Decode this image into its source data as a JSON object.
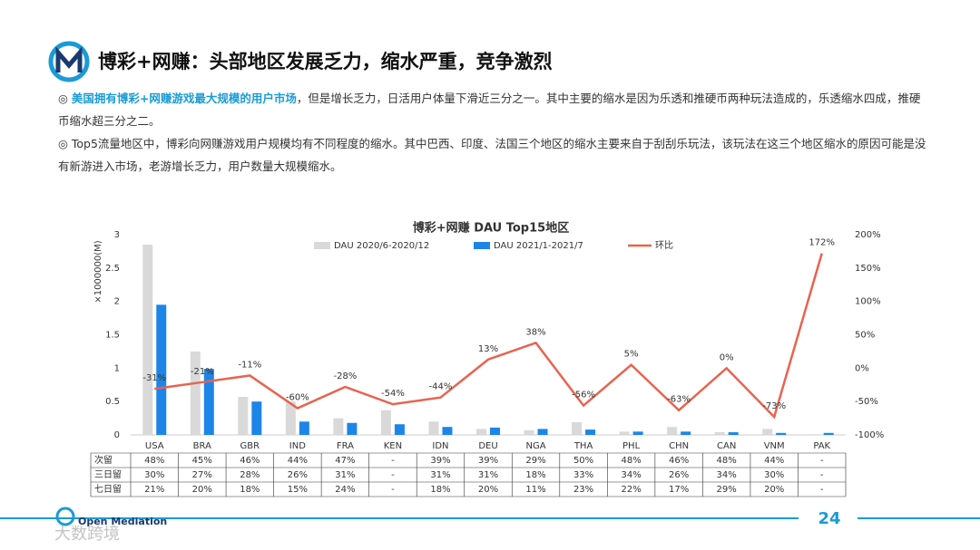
{
  "header": {
    "title": "博彩+网赚：头部地区发展乏力，缩水严重，竞争激烈"
  },
  "bullets": [
    {
      "highlight": "美国拥有博彩+网赚游戏最大规模的用户市场",
      "text": "，但是增长乏力，日活用户体量下滑近三分之一。其中主要的缩水是因为乐透和推硬币两种玩法造成的，乐透缩水四成，推硬币缩水超三分之二。"
    },
    {
      "text": "Top5流量地区中，博彩向网赚游戏用户规模均有不同程度的缩水。其中巴西、印度、法国三个地区的缩水主要来自于刮刮乐玩法，该玩法在这三个地区缩水的原因可能是没有新游进入市场，老游增长乏力，用户数量大规模缩水。"
    }
  ],
  "chart_data": {
    "type": "bar",
    "title": "博彩+网赚 DAU Top15地区",
    "y_label": "×1000000(M)",
    "categories": [
      "USA",
      "BRA",
      "GBR",
      "IND",
      "FRA",
      "KEN",
      "IDN",
      "DEU",
      "NGA",
      "THA",
      "PHL",
      "CHN",
      "CAN",
      "VNM",
      "PAK"
    ],
    "series": [
      {
        "name": "DAU 2020/6-2020/12",
        "color": "#d9d9d9",
        "values": [
          2.85,
          1.25,
          0.57,
          0.5,
          0.25,
          0.37,
          0.2,
          0.09,
          0.07,
          0.19,
          0.05,
          0.12,
          0.04,
          0.09,
          0.01
        ]
      },
      {
        "name": "DAU 2021/1-2021/7",
        "color": "#1e85e8",
        "values": [
          1.95,
          0.99,
          0.5,
          0.2,
          0.18,
          0.16,
          0.12,
          0.11,
          0.09,
          0.08,
          0.05,
          0.05,
          0.04,
          0.03,
          0.03
        ]
      },
      {
        "name": "环比",
        "color": "#e8634f",
        "type": "line",
        "axis": "y2",
        "values": [
          -31,
          -21,
          -11,
          -60,
          -28,
          -54,
          -44,
          13,
          38,
          -56,
          5,
          -63,
          0,
          -73,
          172
        ],
        "value_labels": [
          "-31%",
          "-21%",
          "-11%",
          "-60%",
          "-28%",
          "-54%",
          "-44%",
          "13%",
          "38%",
          "-56%",
          "5%",
          "-63%",
          "0%",
          "-73%",
          "172%"
        ]
      }
    ],
    "ylim": [
      0,
      3
    ],
    "yticks": [
      0,
      0.5,
      1,
      1.5,
      2,
      2.5,
      3
    ],
    "y2lim": [
      -100,
      200
    ],
    "y2ticks": [
      {
        "value": -100,
        "label": "-100%"
      },
      {
        "value": -50,
        "label": "-50%"
      },
      {
        "value": 0,
        "label": "0%"
      },
      {
        "value": 50,
        "label": "50%"
      },
      {
        "value": 100,
        "label": "100%"
      },
      {
        "value": 150,
        "label": "150%"
      },
      {
        "value": 200,
        "label": "200%"
      }
    ]
  },
  "table": {
    "row_headers": [
      "次留",
      "三日留",
      "七日留"
    ],
    "rows": [
      [
        "48%",
        "45%",
        "46%",
        "44%",
        "47%",
        "-",
        "39%",
        "39%",
        "29%",
        "50%",
        "48%",
        "46%",
        "48%",
        "44%",
        "-"
      ],
      [
        "30%",
        "27%",
        "28%",
        "26%",
        "31%",
        "-",
        "31%",
        "31%",
        "18%",
        "33%",
        "34%",
        "26%",
        "34%",
        "30%",
        "-"
      ],
      [
        "21%",
        "20%",
        "18%",
        "15%",
        "24%",
        "-",
        "18%",
        "20%",
        "11%",
        "23%",
        "22%",
        "17%",
        "29%",
        "20%",
        "-"
      ]
    ]
  },
  "footer": {
    "logo": "Open Mediation",
    "page": "24",
    "watermark": "大数跨境"
  }
}
